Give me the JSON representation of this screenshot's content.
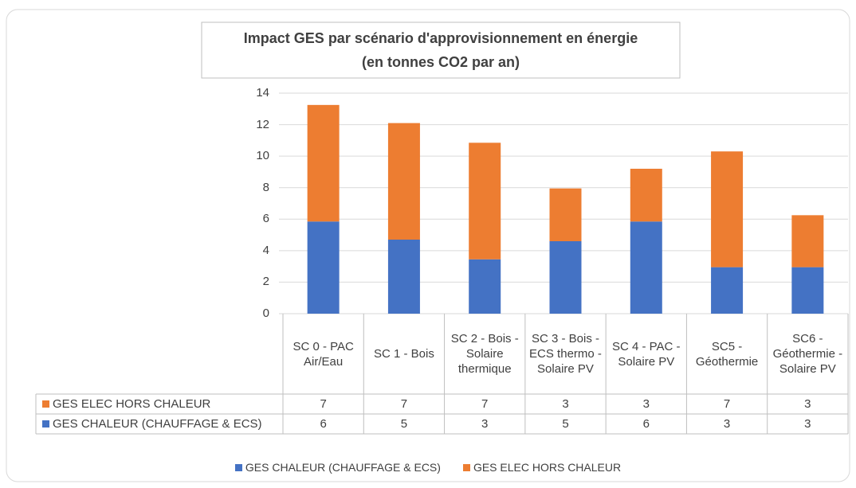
{
  "chart_data": {
    "type": "stacked_bar",
    "title_lines": [
      "Impact GES par scénario d'approvisionnement en énergie",
      "(en tonnes CO2 par an)"
    ],
    "categories": [
      "SC 0 - PAC Air/Eau",
      "SC 1 - Bois",
      "SC 2 - Bois - Solaire thermique",
      "SC 3 - Bois - ECS thermo - Solaire PV",
      "SC 4 - PAC - Solaire PV",
      "SC5 - Géothermie",
      "SC6 - Géothermie - Solaire PV"
    ],
    "series": [
      {
        "name": "GES CHALEUR (CHAUFFAGE & ECS)",
        "color": "#4472c4",
        "values": [
          5.85,
          4.7,
          3.45,
          4.6,
          5.85,
          2.95,
          2.95
        ],
        "value_labels": [
          "6",
          "5",
          "3",
          "5",
          "6",
          "3",
          "3"
        ]
      },
      {
        "name": "GES ELEC HORS CHALEUR",
        "color": "#ed7d31",
        "values": [
          7.4,
          7.4,
          7.4,
          3.35,
          3.35,
          7.35,
          3.3
        ],
        "value_labels": [
          "7",
          "7",
          "7",
          "3",
          "3",
          "7",
          "3"
        ]
      }
    ],
    "ylim": [
      0,
      14
    ],
    "yticks": [
      0,
      2,
      4,
      6,
      8,
      10,
      12,
      14
    ],
    "grid": true,
    "data_table": true
  }
}
